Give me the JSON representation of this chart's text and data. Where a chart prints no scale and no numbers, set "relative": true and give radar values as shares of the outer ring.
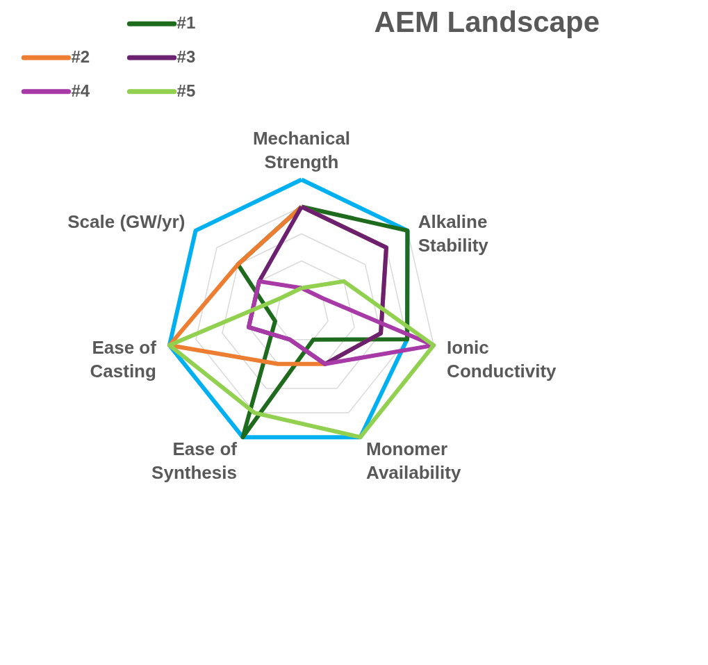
{
  "chart_data": {
    "type": "radar",
    "title": "AEM Landscape",
    "relative": true,
    "grid": true,
    "legend": "top left",
    "categories": [
      "Mechanical Strength",
      "Alkaline Stability",
      "Ionic Conductivity",
      "Monomer Availability",
      "Ease of Synthesis",
      "Ease of Casting",
      "Scale (GW/yr)"
    ],
    "series": [
      {
        "color": "#00b0f0",
        "values": [
          1.0,
          1.0,
          0.8,
          1.0,
          1.0,
          1.0,
          1.0
        ]
      },
      {
        "name": "#1",
        "color": "#1e6b1e",
        "values": [
          0.8,
          1.0,
          0.8,
          0.2,
          1.0,
          0.2,
          0.6
        ]
      },
      {
        "name": "#2",
        "color": "#ed7d31",
        "values": [
          0.8,
          0.8,
          0.6,
          0.4,
          0.4,
          1.0,
          0.6
        ]
      },
      {
        "name": "#3",
        "color": "#6b2170",
        "values": [
          0.8,
          0.8,
          0.6,
          0.4,
          0.2,
          0.4,
          0.4
        ]
      },
      {
        "name": "#4",
        "color": "#a83aa8",
        "values": [
          0.2,
          0.2,
          1.0,
          0.4,
          0.2,
          0.4,
          0.4
        ]
      },
      {
        "name": "#5",
        "color": "#92d050",
        "values": [
          0.2,
          0.4,
          1.0,
          1.0,
          0.8,
          1.0,
          0.2
        ]
      }
    ]
  }
}
